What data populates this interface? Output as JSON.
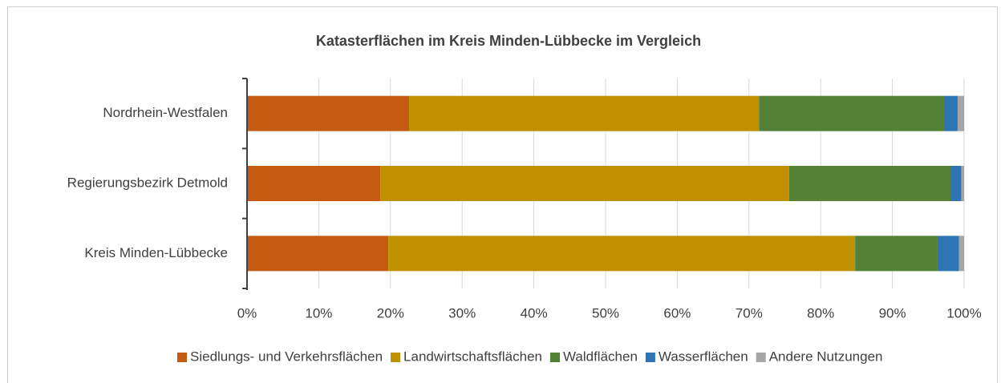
{
  "chart_data": {
    "type": "bar",
    "orientation": "horizontal",
    "stacked": true,
    "title": "Katasterflächen im Kreis Minden-Lübbecke im Vergleich",
    "categories": [
      "Nordrhein-Westfalen",
      "Regierungsbezirk Detmold",
      "Kreis Minden-Lübbecke"
    ],
    "series": [
      {
        "name": "Siedlungs- und Verkehrsflächen",
        "color": "#c55a11",
        "values": [
          22.6,
          18.6,
          19.7
        ]
      },
      {
        "name": "Landwirtschaftsflächen",
        "color": "#bf9000",
        "values": [
          48.8,
          57.0,
          65.1
        ]
      },
      {
        "name": "Waldflächen",
        "color": "#538135",
        "values": [
          25.8,
          22.5,
          11.5
        ]
      },
      {
        "name": "Wasserflächen",
        "color": "#2e75b6",
        "values": [
          1.9,
          1.5,
          3.0
        ]
      },
      {
        "name": "Andere Nutzungen",
        "color": "#a5a5a5",
        "values": [
          0.9,
          0.4,
          0.7
        ]
      }
    ],
    "xlim": [
      0,
      100
    ],
    "xticks": [
      {
        "value": 0,
        "label": "0%"
      },
      {
        "value": 10,
        "label": "10%"
      },
      {
        "value": 20,
        "label": "20%"
      },
      {
        "value": 30,
        "label": "30%"
      },
      {
        "value": 40,
        "label": "40%"
      },
      {
        "value": 50,
        "label": "50%"
      },
      {
        "value": 60,
        "label": "60%"
      },
      {
        "value": 70,
        "label": "70%"
      },
      {
        "value": 80,
        "label": "80%"
      },
      {
        "value": 90,
        "label": "90%"
      },
      {
        "value": 100,
        "label": "100%"
      }
    ],
    "grid": true,
    "legend": "bottom"
  }
}
